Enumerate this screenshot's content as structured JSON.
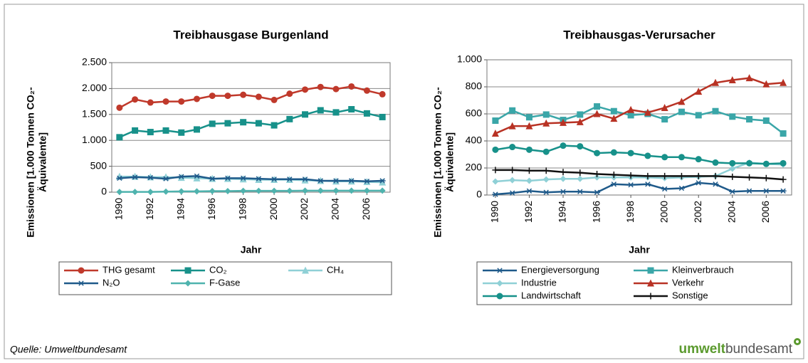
{
  "chart_data": [
    {
      "type": "line",
      "title": "Treibhausgase Burgenland",
      "x_label": "Jahr",
      "y_label": [
        "Emissionen [1.000 Tonnen CO₂-",
        "Äquivalente]"
      ],
      "x": [
        1990,
        1991,
        1992,
        1993,
        1994,
        1995,
        1996,
        1997,
        1998,
        1999,
        2000,
        2001,
        2002,
        2003,
        2004,
        2005,
        2006,
        2007
      ],
      "xlim": [
        1989.5,
        2007.5
      ],
      "xticks": [
        1990,
        1992,
        1994,
        1996,
        1998,
        2000,
        2002,
        2004,
        2006
      ],
      "ylim": [
        0,
        2500
      ],
      "yticks": [
        0,
        500,
        {
          "value": 1000,
          "label": "1.000"
        },
        {
          "value": 1500,
          "label": "1.500"
        },
        {
          "value": 2000,
          "label": "2.000"
        },
        {
          "value": 2500,
          "label": "2.500"
        }
      ],
      "grid": true,
      "series": [
        {
          "name": "THG gesamt",
          "color": "#c0392b",
          "marker": "circle",
          "values": [
            1630,
            1790,
            1730,
            1750,
            1750,
            1800,
            1860,
            1860,
            1880,
            1840,
            1780,
            1900,
            1980,
            2030,
            1990,
            2040,
            1960,
            1890
          ]
        },
        {
          "name": "CO₂",
          "color": "#17918a",
          "marker": "square",
          "values": [
            1060,
            1190,
            1160,
            1190,
            1150,
            1210,
            1320,
            1330,
            1350,
            1330,
            1290,
            1410,
            1500,
            1580,
            1540,
            1600,
            1520,
            1450
          ]
        },
        {
          "name": "CH₄",
          "color": "#8fd0d6",
          "marker": "triangle",
          "values": [
            300,
            300,
            290,
            290,
            280,
            270,
            260,
            260,
            250,
            240,
            240,
            240,
            230,
            220,
            210,
            210,
            200,
            190
          ]
        },
        {
          "name": "N₂O",
          "color": "#1f5a8a",
          "marker": "star",
          "values": [
            270,
            290,
            280,
            260,
            300,
            310,
            260,
            270,
            270,
            260,
            250,
            250,
            250,
            220,
            220,
            220,
            210,
            220
          ]
        },
        {
          "name": "F-Gase",
          "color": "#4fb3ae",
          "marker": "diamond",
          "values": [
            5,
            5,
            5,
            10,
            15,
            15,
            20,
            20,
            25,
            25,
            25,
            25,
            30,
            30,
            30,
            30,
            30,
            30
          ]
        }
      ]
    },
    {
      "type": "line",
      "title": "Treibhausgas-Verursacher",
      "x_label": "Jahr",
      "y_label": [
        "Emissionen [1.000 Tonnen CO₂-",
        "Äquivalente]"
      ],
      "x": [
        1990,
        1991,
        1992,
        1993,
        1994,
        1995,
        1996,
        1997,
        1998,
        1999,
        2000,
        2001,
        2002,
        2003,
        2004,
        2005,
        2006,
        2007
      ],
      "xlim": [
        1989.5,
        2007.5
      ],
      "xticks": [
        1990,
        1992,
        1994,
        1996,
        1998,
        2000,
        2002,
        2004,
        2006
      ],
      "ylim": [
        0,
        1000
      ],
      "yticks": [
        0,
        200,
        400,
        600,
        800,
        {
          "value": 1000,
          "label": "1.000"
        }
      ],
      "grid": true,
      "series": [
        {
          "name": "Energieversorgung",
          "color": "#1f5a8a",
          "marker": "star",
          "values": [
            5,
            15,
            30,
            20,
            25,
            25,
            20,
            80,
            75,
            80,
            45,
            50,
            90,
            80,
            25,
            30,
            30,
            30
          ]
        },
        {
          "name": "Kleinverbrauch",
          "color": "#3aa6a8",
          "marker": "square",
          "values": [
            550,
            625,
            575,
            595,
            555,
            595,
            655,
            620,
            590,
            600,
            560,
            615,
            590,
            620,
            580,
            560,
            550,
            455
          ]
        },
        {
          "name": "Industrie",
          "color": "#8fd0d6",
          "marker": "diamond",
          "values": [
            100,
            110,
            105,
            115,
            120,
            120,
            130,
            130,
            130,
            130,
            125,
            130,
            135,
            140,
            195,
            240,
            230,
            225
          ]
        },
        {
          "name": "Verkehr",
          "color": "#b83224",
          "marker": "triangle",
          "values": [
            455,
            510,
            510,
            530,
            535,
            540,
            600,
            565,
            630,
            610,
            645,
            690,
            765,
            830,
            850,
            865,
            820,
            830
          ]
        },
        {
          "name": "Landwirtschaft",
          "color": "#17918a",
          "marker": "circle",
          "values": [
            335,
            355,
            335,
            320,
            365,
            360,
            310,
            315,
            310,
            290,
            280,
            280,
            265,
            240,
            235,
            235,
            230,
            235
          ]
        },
        {
          "name": "Sonstige",
          "color": "#111111",
          "marker": "plus",
          "values": [
            185,
            185,
            180,
            180,
            170,
            165,
            155,
            150,
            145,
            140,
            140,
            140,
            140,
            140,
            135,
            130,
            125,
            115
          ]
        }
      ]
    }
  ],
  "footer": {
    "source": "Quelle: Umweltbundesamt",
    "logo_bold": "umwelt",
    "logo_rest": "bundesamt"
  }
}
